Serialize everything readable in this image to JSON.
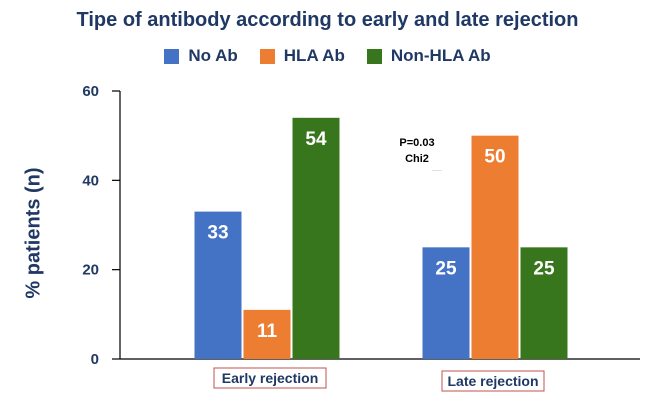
{
  "chart_data": {
    "type": "bar",
    "title": "Tipe of antibody according to early and late rejection",
    "xlabel": "",
    "ylabel": "% patients (n)",
    "ylim": [
      0,
      60
    ],
    "yticks": [
      0,
      20,
      40,
      60
    ],
    "categories": [
      "Early rejection",
      "Late rejection"
    ],
    "series": [
      {
        "name": "No Ab",
        "color": "#4472c4",
        "values": [
          33,
          25
        ]
      },
      {
        "name": "HLA Ab",
        "color": "#ed7d31",
        "values": [
          11,
          50
        ]
      },
      {
        "name": "Non-HLA Ab",
        "color": "#38761d",
        "values": [
          54,
          25
        ]
      }
    ],
    "data_labels": true,
    "legend_position": "top-center",
    "grid": false,
    "annotation": {
      "line1": "P=0.03",
      "line2": "Chi2"
    }
  },
  "colors": {
    "title": "#1f3864",
    "axis": "#000000",
    "category_label_border": "#c0504d"
  }
}
